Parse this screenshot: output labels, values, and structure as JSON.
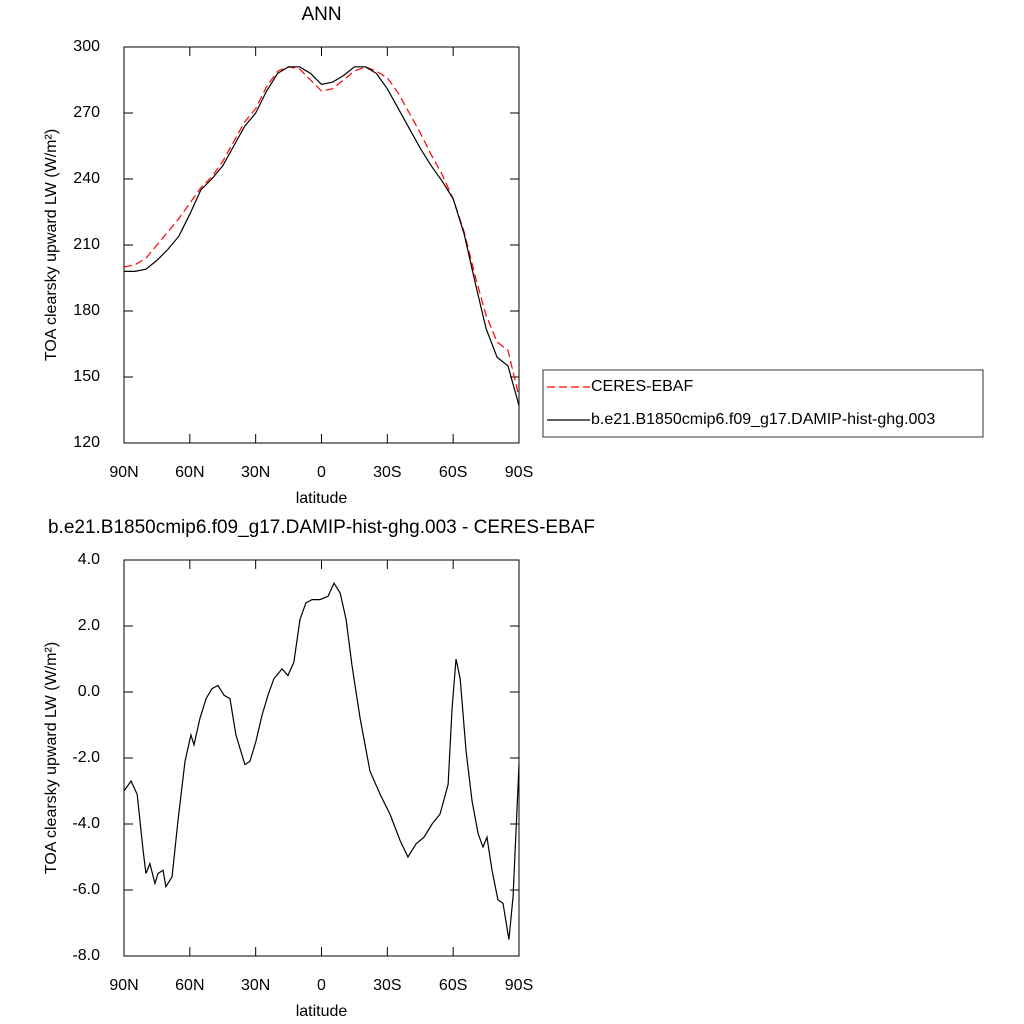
{
  "chart_data": [
    {
      "type": "line",
      "title": "ANN",
      "xlabel": "latitude",
      "ylabel": "TOA clearsky upward LW (W/m²)",
      "x": [
        90,
        85,
        80,
        75,
        70,
        65,
        60,
        55,
        50,
        45,
        40,
        35,
        30,
        25,
        20,
        15,
        10,
        5,
        0,
        -5,
        -10,
        -15,
        -20,
        -25,
        -30,
        -35,
        -40,
        -45,
        -50,
        -55,
        -60,
        -65,
        -70,
        -75,
        -80,
        -85,
        -90
      ],
      "series": [
        {
          "name": "CERES-EBAF",
          "color": "#ff0000",
          "style": "dashed",
          "values": [
            200,
            201,
            204,
            210,
            216,
            222,
            229,
            236,
            241,
            248,
            257,
            266,
            272,
            282,
            289,
            291,
            290,
            285,
            280,
            281,
            285,
            289,
            291,
            289,
            286,
            279,
            270,
            261,
            251,
            242,
            231,
            216,
            196,
            178,
            166,
            162,
            141
          ]
        },
        {
          "name": "b.e21.B1850cmip6.f09_g17.DAMIP-hist-ghg.003",
          "color": "#000000",
          "style": "solid",
          "values": [
            198,
            198,
            199,
            203,
            208,
            214,
            224,
            235,
            240,
            246,
            255,
            264,
            270,
            280,
            288,
            291,
            291,
            288,
            283,
            284,
            287,
            291,
            291,
            288,
            281,
            272,
            263,
            254,
            246,
            239,
            231,
            215,
            193,
            172,
            159,
            155,
            137
          ]
        }
      ],
      "xlim": [
        90,
        -90
      ],
      "xticks": [
        {
          "value": 90,
          "label": "90N"
        },
        {
          "value": 60,
          "label": "60N"
        },
        {
          "value": 30,
          "label": "30N"
        },
        0,
        {
          "value": -30,
          "label": "30S"
        },
        {
          "value": -60,
          "label": "60S"
        },
        {
          "value": -90,
          "label": "90S"
        }
      ],
      "ylim": [
        120,
        300
      ],
      "yticks": [
        120,
        150,
        180,
        210,
        240,
        270,
        300
      ],
      "legend": "right"
    },
    {
      "type": "line",
      "title": "b.e21.B1850cmip6.f09_g17.DAMIP-hist-ghg.003 - CERES-EBAF",
      "xlabel": "latitude",
      "ylabel": "TOA clearsky upward LW (W/m²)",
      "x": [
        90,
        86.8,
        84,
        81.3,
        80,
        78.2,
        75.9,
        74.5,
        72.2,
        70.9,
        68.1,
        65.4,
        62.2,
        59.5,
        58.1,
        55.4,
        52.6,
        49.9,
        47.2,
        44.4,
        41.7,
        39,
        34.9,
        32.6,
        29.9,
        27.1,
        24.4,
        21.7,
        18,
        15.3,
        12.6,
        9.8,
        7.1,
        4.3,
        0.7,
        -3,
        -5.7,
        -8.5,
        -11.2,
        -13.9,
        -17.6,
        -22.1,
        -26.7,
        -31.2,
        -35.8,
        -39.4,
        -43.1,
        -46.7,
        -50.4,
        -54,
        -57.7,
        -59.5,
        -61.3,
        -63.2,
        -65.9,
        -68.6,
        -71.4,
        -73.6,
        -75.4,
        -77.7,
        -80.4,
        -82.7,
        -85.4,
        -87.3,
        -90
      ],
      "values": [
        -3.0,
        -2.7,
        -3.1,
        -4.8,
        -5.5,
        -5.2,
        -5.8,
        -5.5,
        -5.4,
        -5.9,
        -5.6,
        -3.9,
        -2.1,
        -1.3,
        -1.6,
        -0.8,
        -0.2,
        0.1,
        0.2,
        -0.1,
        -0.2,
        -1.3,
        -2.2,
        -2.1,
        -1.5,
        -0.7,
        -0.1,
        0.4,
        0.7,
        0.5,
        0.9,
        2.2,
        2.7,
        2.8,
        2.8,
        2.9,
        3.3,
        3.0,
        2.2,
        0.8,
        -0.8,
        -2.4,
        -3.1,
        -3.7,
        -4.5,
        -5.0,
        -4.6,
        -4.4,
        -4.0,
        -3.7,
        -2.8,
        -0.5,
        1.0,
        0.4,
        -1.8,
        -3.3,
        -4.3,
        -4.7,
        -4.4,
        -5.4,
        -6.3,
        -6.4,
        -7.5,
        -6.2,
        -2.2
      ],
      "color": "#000000",
      "style": "solid",
      "xlim": [
        90,
        -90
      ],
      "xticks": [
        {
          "value": 90,
          "label": "90N"
        },
        {
          "value": 60,
          "label": "60N"
        },
        {
          "value": 30,
          "label": "30N"
        },
        0,
        {
          "value": -30,
          "label": "30S"
        },
        {
          "value": -60,
          "label": "60S"
        },
        {
          "value": -90,
          "label": "90S"
        }
      ],
      "ylim": [
        -8,
        4
      ],
      "yticks": [
        {
          "value": -8,
          "label": "-8.0"
        },
        {
          "value": -6,
          "label": "-6.0"
        },
        {
          "value": -4,
          "label": "-4.0"
        },
        {
          "value": -2,
          "label": "-2.0"
        },
        {
          "value": 0,
          "label": "0.0"
        },
        {
          "value": 2,
          "label": "2.0"
        },
        {
          "value": 4,
          "label": "4.0"
        }
      ]
    }
  ]
}
